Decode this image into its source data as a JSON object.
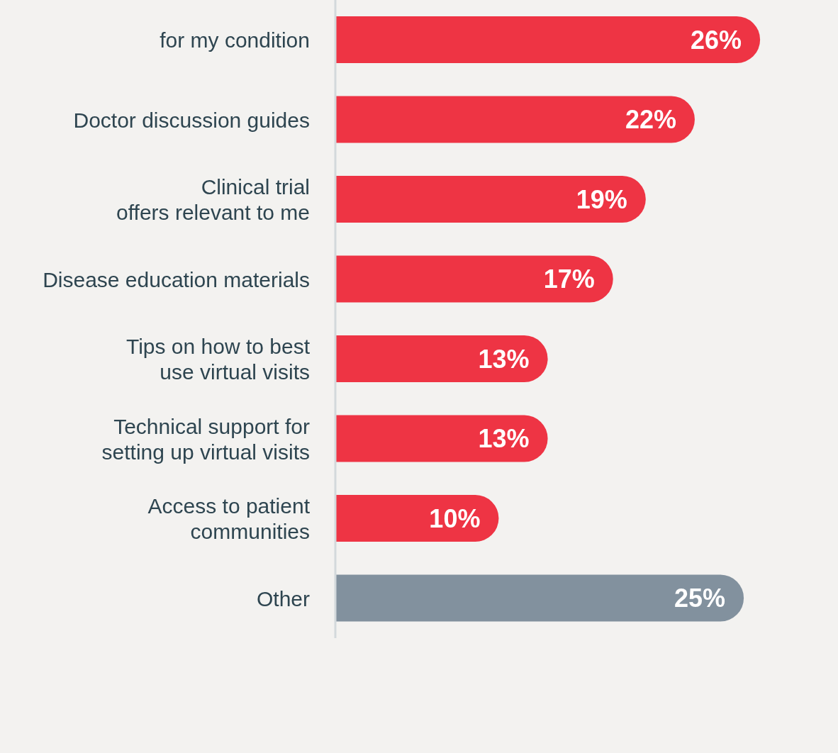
{
  "chart_data": {
    "type": "bar",
    "orientation": "horizontal",
    "categories": [
      "for my condition",
      "Doctor discussion guides",
      "Clinical trial offers relevant to me",
      "Disease education materials",
      "Tips on how to best use virtual visits",
      "Technical support for setting up virtual visits",
      "Access to patient communities",
      "Other"
    ],
    "values": [
      26,
      22,
      19,
      17,
      13,
      13,
      10,
      25
    ],
    "colors": [
      "#ee3444",
      "#ee3444",
      "#ee3444",
      "#ee3444",
      "#ee3444",
      "#ee3444",
      "#ee3444",
      "#82919e"
    ],
    "value_labels": [
      "26%",
      "22%",
      "19%",
      "17%",
      "13%",
      "13%",
      "10%",
      "25%"
    ]
  }
}
